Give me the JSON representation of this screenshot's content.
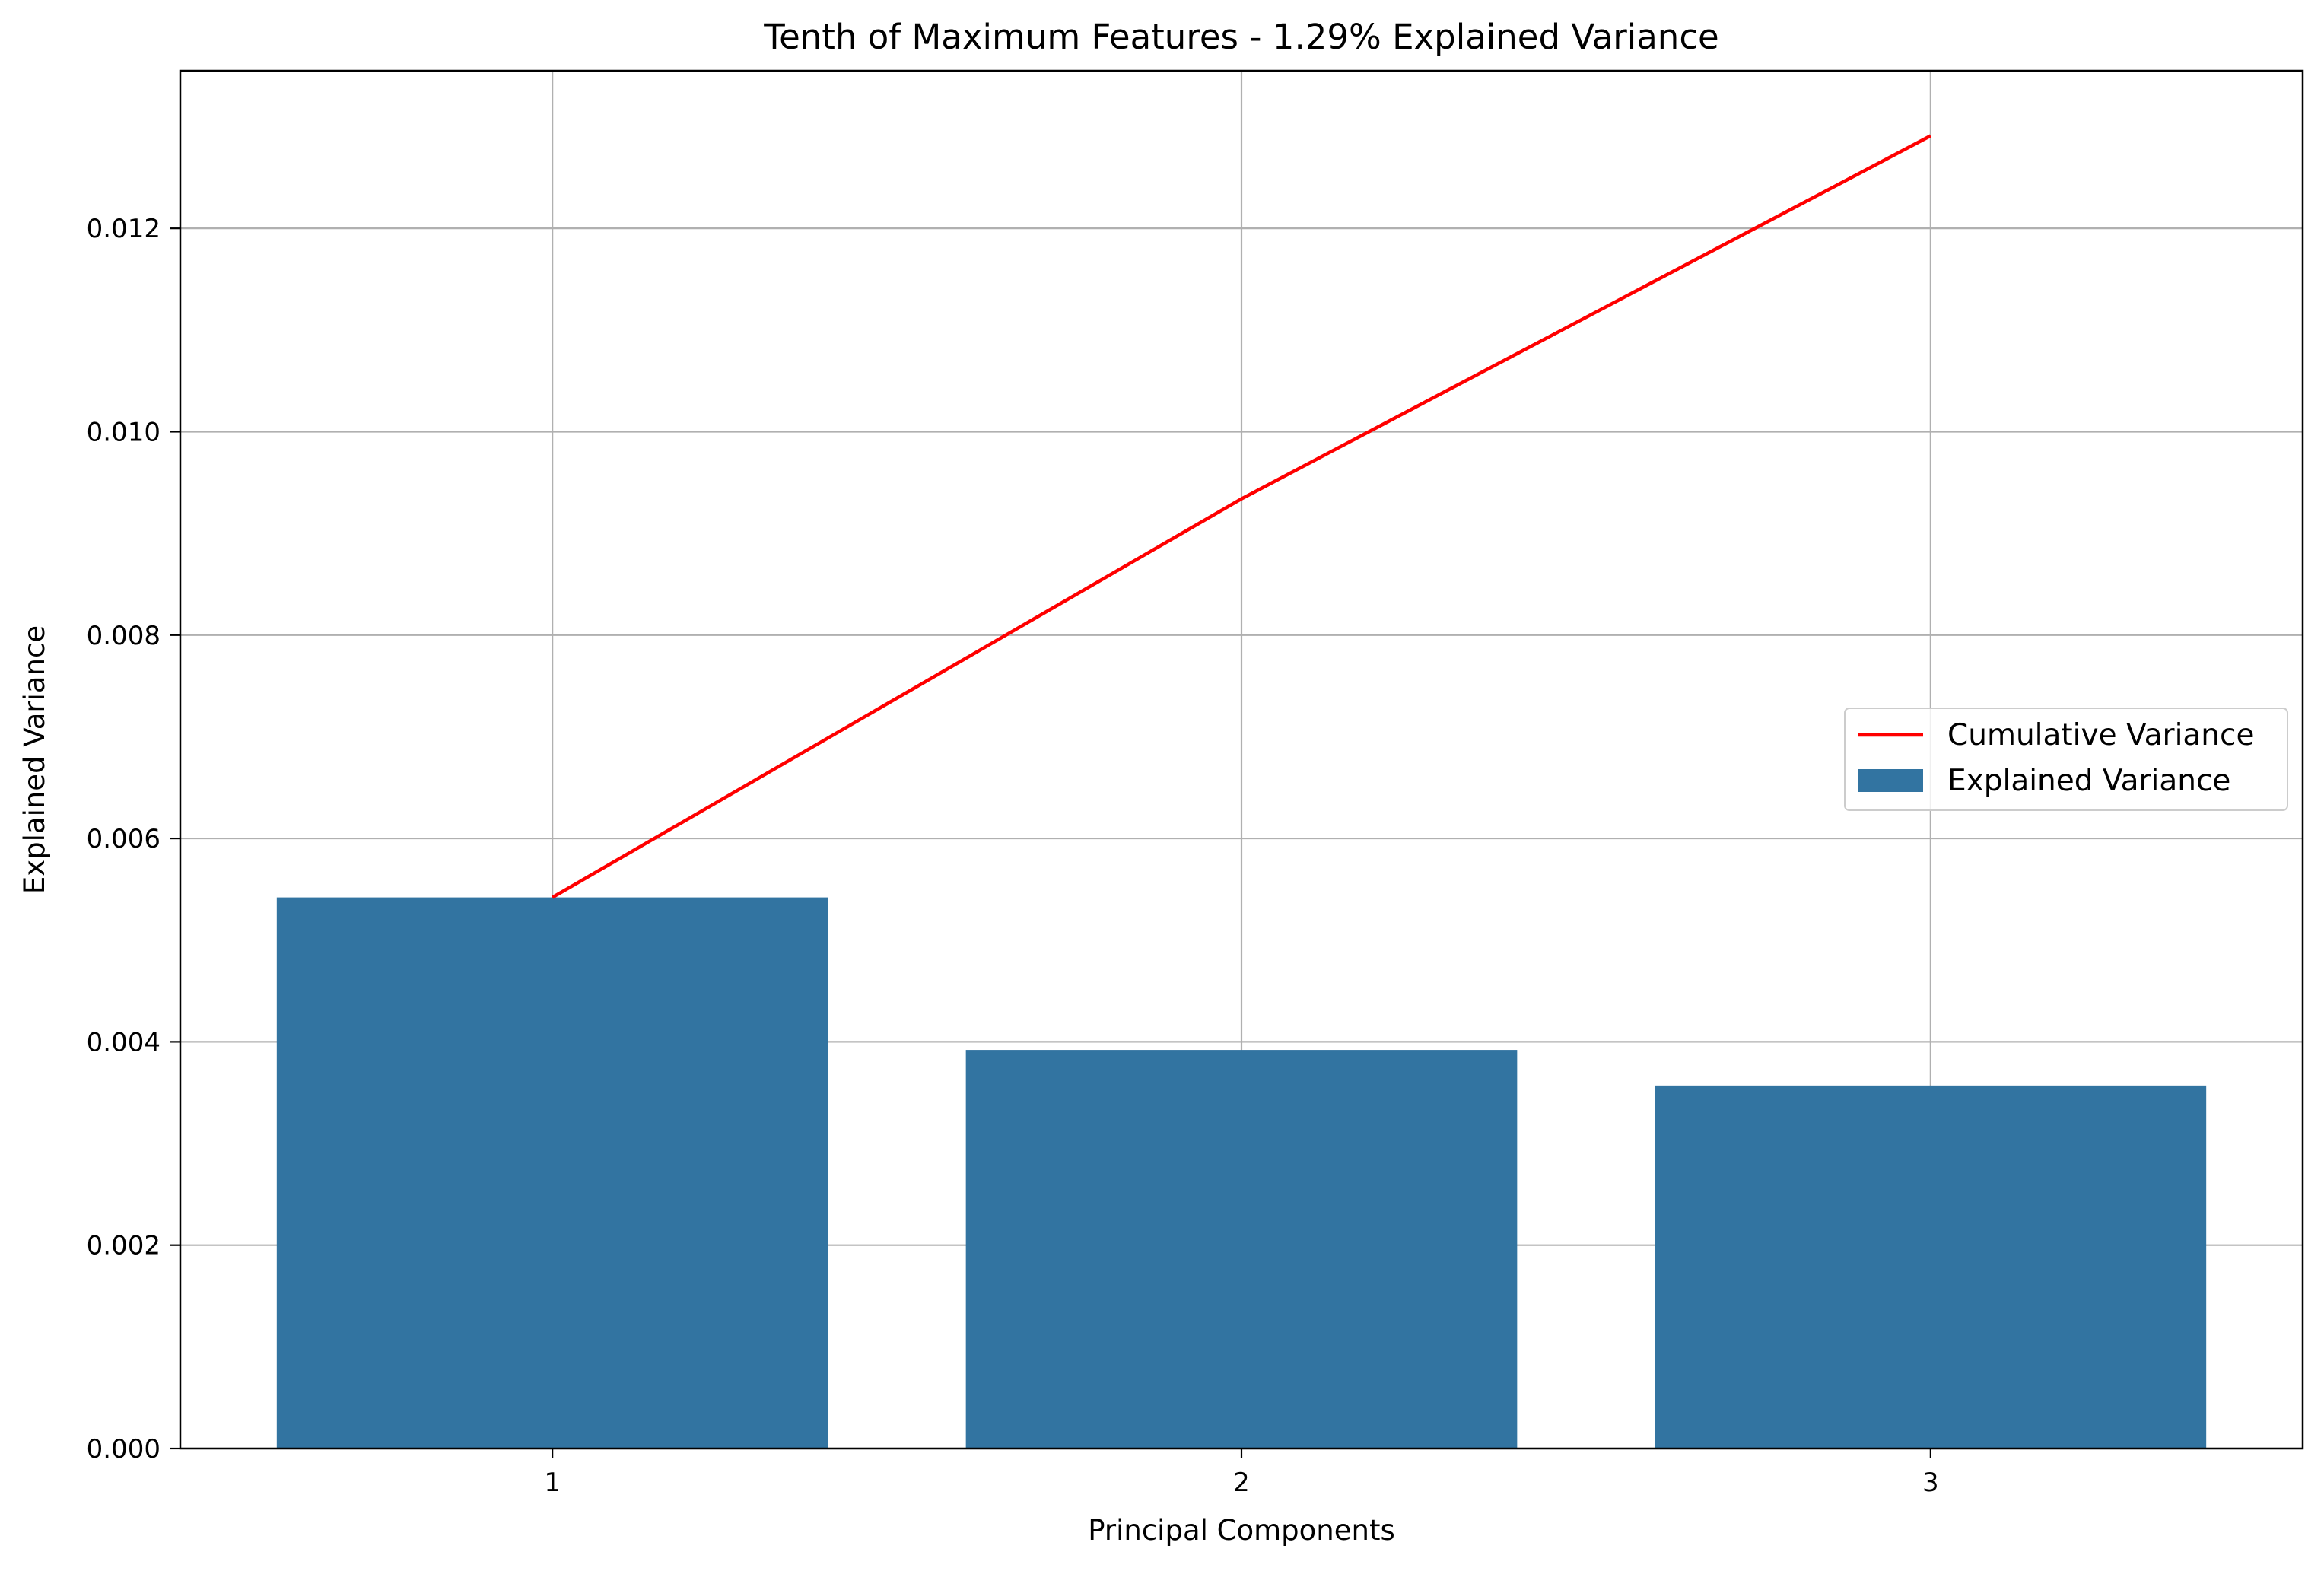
{
  "chart_data": {
    "type": "bar",
    "title": "Tenth of Maximum Features - 1.29% Explained Variance",
    "xlabel": "Principal Components",
    "ylabel": "Explained Variance",
    "categories": [
      "1",
      "2",
      "3"
    ],
    "x": [
      1,
      2,
      3
    ],
    "xlim": [
      0.46,
      3.54
    ],
    "ylim": [
      0,
      0.01355
    ],
    "yticks": [
      "0.000",
      "0.002",
      "0.004",
      "0.006",
      "0.008",
      "0.010",
      "0.012"
    ],
    "grid": true,
    "legend_position": "center-right",
    "series": [
      {
        "name": "Cumulative Variance",
        "type": "line",
        "color": "#ff0000",
        "values": [
          0.00542,
          0.00934,
          0.01291
        ]
      },
      {
        "name": "Explained Variance",
        "type": "bar",
        "color": "#3274a1",
        "values": [
          0.00542,
          0.00392,
          0.00357
        ]
      }
    ]
  }
}
